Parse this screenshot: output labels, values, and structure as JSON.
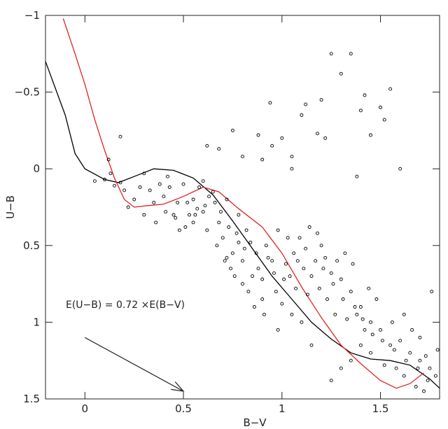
{
  "chart_data": {
    "type": "scatter",
    "title": "",
    "xlabel": "B−V",
    "ylabel": "U−B",
    "xlim": [
      -0.2,
      1.8
    ],
    "ylim": [
      1.5,
      -1
    ],
    "x_ticks": [
      {
        "value": 0,
        "label": "0"
      },
      {
        "value": 0.5,
        "label": "0.5"
      },
      {
        "value": 1,
        "label": "1"
      },
      {
        "value": 1.5,
        "label": "1.5"
      }
    ],
    "y_ticks": [
      {
        "value": -1,
        "label": "−1"
      },
      {
        "value": -0.5,
        "label": "−0.5"
      },
      {
        "value": 0,
        "label": "0"
      },
      {
        "value": 0.5,
        "label": "0.5"
      },
      {
        "value": 1,
        "label": "1"
      },
      {
        "value": 1.5,
        "label": "1.5"
      }
    ],
    "annotation": {
      "text": "E(U−B) = 0.72 ×E(B−V)",
      "arrow_from": [
        0,
        1.1
      ],
      "arrow_to": [
        0.5,
        1.45
      ]
    },
    "series": [
      {
        "type": "line",
        "color": "#000000",
        "points": [
          [
            -0.2,
            -0.7
          ],
          [
            -0.1,
            -0.35
          ],
          [
            -0.05,
            -0.1
          ],
          [
            0.0,
            0.0
          ],
          [
            0.1,
            0.07
          ],
          [
            0.17,
            0.09
          ],
          [
            0.25,
            0.05
          ],
          [
            0.35,
            0.0
          ],
          [
            0.45,
            0.01
          ],
          [
            0.55,
            0.06
          ],
          [
            0.65,
            0.17
          ],
          [
            0.75,
            0.34
          ],
          [
            0.85,
            0.52
          ],
          [
            0.95,
            0.7
          ],
          [
            1.05,
            0.85
          ],
          [
            1.15,
            1.0
          ],
          [
            1.25,
            1.11
          ],
          [
            1.35,
            1.2
          ],
          [
            1.45,
            1.24
          ],
          [
            1.55,
            1.25
          ],
          [
            1.65,
            1.28
          ],
          [
            1.75,
            1.37
          ],
          [
            1.8,
            1.43
          ]
        ]
      },
      {
        "type": "line",
        "color": "#e32222",
        "points": [
          [
            -0.11,
            -0.98
          ],
          [
            -0.05,
            -0.75
          ],
          [
            0.0,
            -0.55
          ],
          [
            0.05,
            -0.32
          ],
          [
            0.1,
            -0.12
          ],
          [
            0.15,
            0.06
          ],
          [
            0.2,
            0.2
          ],
          [
            0.25,
            0.25
          ],
          [
            0.32,
            0.24
          ],
          [
            0.4,
            0.23
          ],
          [
            0.5,
            0.18
          ],
          [
            0.6,
            0.12
          ],
          [
            0.68,
            0.15
          ],
          [
            0.78,
            0.26
          ],
          [
            0.9,
            0.38
          ],
          [
            1.0,
            0.55
          ],
          [
            1.1,
            0.77
          ],
          [
            1.2,
            0.97
          ],
          [
            1.3,
            1.15
          ],
          [
            1.4,
            1.27
          ],
          [
            1.5,
            1.38
          ],
          [
            1.58,
            1.43
          ],
          [
            1.65,
            1.4
          ],
          [
            1.72,
            1.33
          ]
        ]
      },
      {
        "type": "scatter",
        "color": "#000000",
        "note_points": "dense cloud of stars",
        "points": [
          [
            0.15,
            0.11
          ],
          [
            0.18,
            0.09
          ],
          [
            0.1,
            0.07
          ],
          [
            0.05,
            0.08
          ],
          [
            0.13,
            0.03
          ],
          [
            0.2,
            0.14
          ],
          [
            0.12,
            -0.06
          ],
          [
            0.18,
            -0.21
          ],
          [
            0.3,
            0.03
          ],
          [
            0.42,
            0.05
          ],
          [
            0.62,
            -0.15
          ],
          [
            0.68,
            -0.13
          ],
          [
            0.75,
            -0.25
          ],
          [
            0.8,
            -0.08
          ],
          [
            0.9,
            -0.06
          ],
          [
            0.88,
            -0.22
          ],
          [
            0.95,
            -0.15
          ],
          [
            1.0,
            -0.2
          ],
          [
            1.05,
            -0.08
          ],
          [
            1.1,
            -0.35
          ],
          [
            1.12,
            -0.42
          ],
          [
            1.2,
            -0.45
          ],
          [
            1.25,
            -0.75
          ],
          [
            1.35,
            -0.75
          ],
          [
            1.3,
            -0.62
          ],
          [
            1.4,
            -0.38
          ],
          [
            1.42,
            -0.48
          ],
          [
            1.45,
            -0.22
          ],
          [
            1.5,
            -0.4
          ],
          [
            1.55,
            -0.52
          ],
          [
            1.52,
            -0.32
          ],
          [
            1.6,
            0.0
          ],
          [
            1.38,
            0.05
          ],
          [
            1.22,
            -0.2
          ],
          [
            1.18,
            -0.23
          ],
          [
            0.94,
            -0.43
          ],
          [
            1.05,
            0.0
          ],
          [
            0.5,
            0.1
          ],
          [
            0.55,
            0.2
          ],
          [
            0.6,
            0.28
          ],
          [
            0.55,
            0.35
          ],
          [
            0.48,
            0.4
          ],
          [
            0.45,
            0.3
          ],
          [
            0.4,
            0.18
          ],
          [
            0.35,
            0.22
          ],
          [
            0.7,
            0.45
          ],
          [
            0.75,
            0.55
          ],
          [
            0.8,
            0.6
          ],
          [
            0.78,
            0.48
          ],
          [
            0.85,
            0.7
          ],
          [
            0.9,
            0.72
          ],
          [
            0.92,
            0.5
          ],
          [
            0.98,
            0.4
          ],
          [
            1.03,
            0.45
          ],
          [
            1.08,
            0.6
          ],
          [
            1.12,
            0.52
          ],
          [
            1.15,
            0.7
          ],
          [
            1.2,
            0.5
          ],
          [
            1.25,
            0.68
          ],
          [
            1.3,
            0.72
          ],
          [
            1.35,
            0.8
          ],
          [
            1.4,
            0.9
          ],
          [
            1.45,
            1.0
          ],
          [
            1.5,
            1.05
          ],
          [
            1.55,
            1.15
          ],
          [
            1.6,
            1.12
          ],
          [
            1.65,
            1.2
          ],
          [
            1.7,
            1.25
          ],
          [
            1.75,
            1.3
          ],
          [
            1.78,
            1.35
          ],
          [
            1.72,
            1.45
          ],
          [
            1.68,
            1.42
          ],
          [
            1.62,
            1.35
          ],
          [
            1.58,
            1.3
          ],
          [
            1.52,
            1.28
          ],
          [
            1.45,
            1.2
          ],
          [
            1.4,
            1.15
          ],
          [
            1.35,
            1.25
          ],
          [
            1.3,
            1.3
          ],
          [
            1.25,
            1.38
          ],
          [
            1.15,
            1.15
          ],
          [
            1.1,
            1.0
          ],
          [
            1.05,
            0.95
          ],
          [
            1.0,
            0.88
          ],
          [
            0.98,
            1.05
          ],
          [
            0.9,
            0.85
          ],
          [
            0.88,
            0.65
          ],
          [
            0.82,
            0.4
          ],
          [
            0.78,
            0.3
          ],
          [
            0.72,
            0.2
          ],
          [
            0.65,
            0.15
          ],
          [
            0.6,
            0.08
          ],
          [
            0.58,
            0.12
          ],
          [
            0.68,
            0.35
          ],
          [
            0.72,
            0.58
          ],
          [
            0.74,
            0.65
          ],
          [
            0.8,
            0.75
          ],
          [
            0.95,
            0.6
          ],
          [
            1.02,
            0.62
          ],
          [
            1.06,
            0.55
          ],
          [
            1.09,
            0.45
          ],
          [
            1.14,
            0.38
          ],
          [
            1.18,
            0.42
          ],
          [
            1.22,
            0.58
          ],
          [
            1.28,
            0.6
          ],
          [
            1.32,
            0.55
          ],
          [
            1.36,
            0.62
          ],
          [
            1.44,
            0.78
          ],
          [
            1.48,
            0.85
          ],
          [
            1.62,
            0.95
          ],
          [
            1.66,
            1.05
          ],
          [
            1.7,
            1.1
          ],
          [
            1.76,
            0.8
          ],
          [
            1.79,
            1.18
          ],
          [
            1.73,
            1.22
          ],
          [
            1.56,
            1.0
          ],
          [
            1.42,
            1.05
          ],
          [
            1.38,
            0.95
          ],
          [
            1.33,
            0.98
          ],
          [
            1.27,
            0.95
          ],
          [
            1.23,
            0.85
          ],
          [
            1.19,
            0.78
          ],
          [
            1.13,
            0.82
          ],
          [
            1.07,
            0.78
          ],
          [
            1.01,
            0.72
          ],
          [
            0.96,
            0.68
          ],
          [
            0.93,
            0.58
          ],
          [
            0.87,
            0.55
          ],
          [
            0.84,
            0.48
          ],
          [
            0.81,
            0.52
          ],
          [
            0.77,
            0.42
          ],
          [
            0.73,
            0.38
          ],
          [
            0.69,
            0.28
          ],
          [
            0.66,
            0.22
          ],
          [
            0.63,
            0.18
          ],
          [
            0.61,
            0.24
          ],
          [
            0.57,
            0.26
          ],
          [
            0.53,
            0.3
          ],
          [
            0.51,
            0.38
          ],
          [
            0.47,
            0.22
          ],
          [
            0.43,
            0.12
          ],
          [
            0.38,
            0.1
          ],
          [
            0.33,
            0.14
          ],
          [
            0.28,
            0.12
          ],
          [
            0.25,
            0.2
          ],
          [
            0.22,
            0.25
          ],
          [
            0.3,
            0.3
          ],
          [
            0.36,
            0.35
          ],
          [
            0.41,
            0.28
          ],
          [
            0.46,
            0.32
          ],
          [
            0.52,
            0.22
          ],
          [
            0.56,
            0.3
          ],
          [
            0.62,
            0.4
          ],
          [
            0.67,
            0.5
          ],
          [
            0.71,
            0.6
          ],
          [
            0.76,
            0.7
          ],
          [
            0.83,
            0.8
          ],
          [
            0.86,
            0.9
          ],
          [
            0.91,
            0.95
          ],
          [
            0.97,
            0.8
          ],
          [
            1.04,
            0.7
          ],
          [
            1.11,
            0.65
          ],
          [
            1.17,
            0.6
          ],
          [
            1.21,
            0.65
          ],
          [
            1.26,
            0.75
          ],
          [
            1.31,
            0.85
          ],
          [
            1.37,
            0.9
          ],
          [
            1.41,
            0.98
          ],
          [
            1.46,
            1.08
          ],
          [
            1.51,
            1.12
          ],
          [
            1.57,
            1.18
          ],
          [
            1.63,
            1.25
          ],
          [
            1.69,
            1.3
          ],
          [
            1.74,
            1.38
          ]
        ]
      }
    ]
  }
}
